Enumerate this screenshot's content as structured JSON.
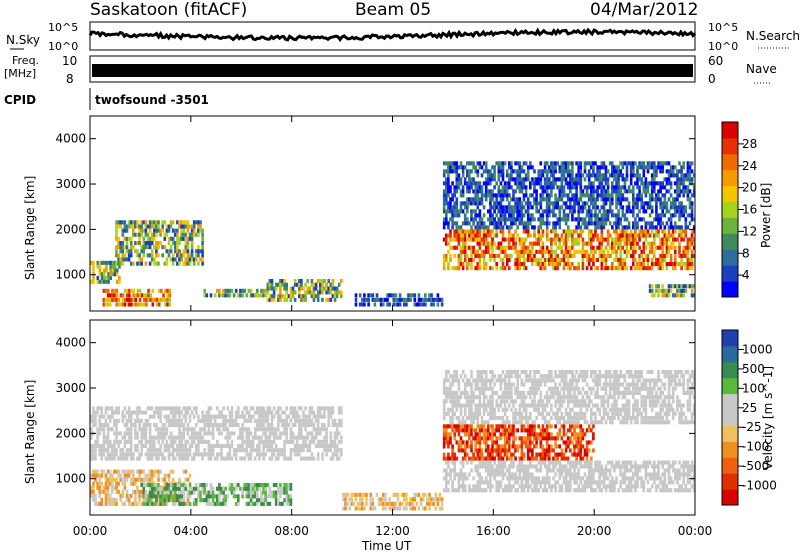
{
  "header": {
    "station": "Saskatoon (fitACF)",
    "beam": "Beam 05",
    "date": "04/Mar/2012"
  },
  "strip_panels": {
    "nsky_label": "N.Sky",
    "nsearch_label": "N.Search",
    "nsky_ticks": [
      "10^5",
      "10^0"
    ],
    "nsearch_ticks": [
      "10^5",
      "10^0"
    ],
    "freq_label_1": "Freq.",
    "freq_label_2": "[MHz]",
    "freq_ticks": [
      "10",
      "8"
    ],
    "nave_label": "Nave",
    "nave_ticks": [
      "60",
      "0"
    ],
    "cpid_label": "CPID",
    "cpid_value": "twofsound -3501"
  },
  "colors": {
    "power_scale": [
      "#0000ff",
      "#1c3fbf",
      "#2e6e9e",
      "#3f8a5e",
      "#6cb23e",
      "#a5d21e",
      "#f5c400",
      "#f59b00",
      "#f06a00",
      "#e63000",
      "#d80000"
    ],
    "velocity_scale": [
      "#2040b0",
      "#2a6a9a",
      "#3c8a50",
      "#5ab83a",
      "#c8c8c8",
      "#c8c8c8",
      "#f0c060",
      "#f09020",
      "#f06010",
      "#e03000",
      "#d80000"
    ]
  },
  "chart_data": [
    {
      "type": "heatmap",
      "name": "Power panel",
      "ylabel": "Slant Range [km]",
      "yticks": [
        "1000",
        "2000",
        "3000",
        "4000"
      ],
      "ylim": [
        200,
        4500
      ],
      "colorbar_label": "Power [dB]",
      "colorbar_ticks": [
        "4",
        "8",
        "12",
        "16",
        "20",
        "24",
        "28"
      ],
      "bands": [
        {
          "t0": 0.0,
          "t1": 1.2,
          "r0": 800,
          "r1": 1300,
          "level": "mid"
        },
        {
          "t0": 0.5,
          "t1": 3.2,
          "r0": 300,
          "r1": 700,
          "level": "high"
        },
        {
          "t0": 1.0,
          "t1": 4.5,
          "r0": 1200,
          "r1": 2200,
          "level": "mid"
        },
        {
          "t0": 4.5,
          "t1": 7.0,
          "r0": 500,
          "r1": 700,
          "level": "mid"
        },
        {
          "t0": 7.0,
          "t1": 10.0,
          "r0": 400,
          "r1": 900,
          "level": "mid"
        },
        {
          "t0": 10.5,
          "t1": 14.0,
          "r0": 300,
          "r1": 600,
          "level": "low"
        },
        {
          "t0": 14.0,
          "t1": 24.0,
          "r0": 1100,
          "r1": 2000,
          "level": "high"
        },
        {
          "t0": 14.0,
          "t1": 24.0,
          "r0": 2000,
          "r1": 3500,
          "level": "low"
        },
        {
          "t0": 22.0,
          "t1": 24.0,
          "r0": 500,
          "r1": 800,
          "level": "mid"
        }
      ]
    },
    {
      "type": "heatmap",
      "name": "Velocity panel",
      "ylabel": "Slant Range [km]",
      "yticks": [
        "1000",
        "2000",
        "3000",
        "4000"
      ],
      "ylim": [
        200,
        4500
      ],
      "xlabel": "Time UT",
      "xticks": [
        "00:00",
        "04:00",
        "08:00",
        "12:00",
        "16:00",
        "20:00",
        "00:00"
      ],
      "xlim": [
        0,
        24
      ],
      "colorbar_label": "Velocity [m s^-1]",
      "colorbar_ticks": [
        "1000",
        "500",
        "100",
        "25",
        "-25",
        "-100",
        "-500",
        "-1000"
      ],
      "bands": [
        {
          "t0": 0.0,
          "t1": 4.0,
          "r0": 400,
          "r1": 1200,
          "level": "neg"
        },
        {
          "t0": 2.0,
          "t1": 8.0,
          "r0": 400,
          "r1": 900,
          "level": "pos"
        },
        {
          "t0": 0.0,
          "t1": 10.0,
          "r0": 1400,
          "r1": 2600,
          "level": "zero"
        },
        {
          "t0": 10.0,
          "t1": 14.0,
          "r0": 300,
          "r1": 700,
          "level": "neg"
        },
        {
          "t0": 14.0,
          "t1": 20.0,
          "r0": 1400,
          "r1": 2200,
          "level": "strongneg"
        },
        {
          "t0": 14.0,
          "t1": 24.0,
          "r0": 700,
          "r1": 1400,
          "level": "zero"
        },
        {
          "t0": 14.0,
          "t1": 24.0,
          "r0": 2200,
          "r1": 3400,
          "level": "zero"
        }
      ]
    }
  ]
}
